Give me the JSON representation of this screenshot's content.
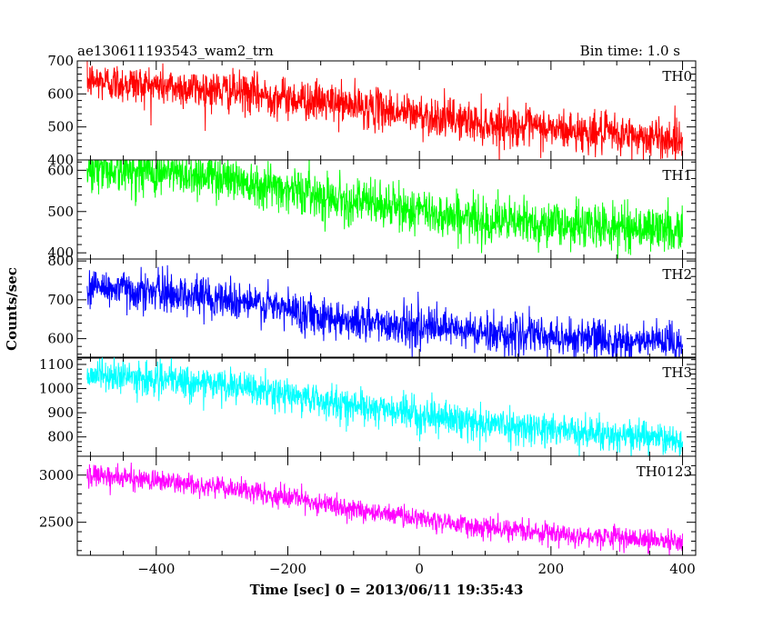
{
  "header": {
    "title": "ae130611193543_wam2_trn",
    "bin_time": "Bin time: 1.0 s"
  },
  "chart_data": {
    "type": "line",
    "xlabel": "Time [sec] 0 = 2013/06/11 19:35:43",
    "ylabel": "Counts/sec",
    "xlim": [
      -520,
      420
    ],
    "x_ticks": [
      -400,
      -200,
      0,
      200,
      400
    ],
    "x_tick_labels": [
      "−400",
      "−200",
      "0",
      "200",
      "400"
    ],
    "data_x_range": [
      -505,
      400
    ],
    "bin_time_s": 1.0,
    "panels": [
      {
        "name": "TH0",
        "color": "#ff0000",
        "ylim": [
          400,
          700
        ],
        "y_ticks": [
          400,
          500,
          600,
          700
        ],
        "y_tick_labels": [
          "400",
          "500",
          "600",
          "700"
        ],
        "trend": [
          [
            -505,
            640
          ],
          [
            -300,
            610
          ],
          [
            -100,
            565
          ],
          [
            100,
            510
          ],
          [
            400,
            460
          ]
        ],
        "noise_sd": 30
      },
      {
        "name": "TH1",
        "color": "#00ff00",
        "ylim": [
          385,
          625
        ],
        "y_ticks": [
          400,
          500,
          600
        ],
        "y_tick_labels": [
          "400",
          "500",
          "600"
        ],
        "trend": [
          [
            -505,
            605
          ],
          [
            -300,
            585
          ],
          [
            -100,
            525
          ],
          [
            100,
            478
          ],
          [
            400,
            455
          ]
        ],
        "noise_sd": 27
      },
      {
        "name": "TH2",
        "color": "#0000ff",
        "ylim": [
          550,
          805
        ],
        "y_ticks": [
          600,
          700,
          800
        ],
        "y_tick_labels": [
          "600",
          "700",
          "800"
        ],
        "trend": [
          [
            -505,
            735
          ],
          [
            -300,
            705
          ],
          [
            -100,
            645
          ],
          [
            100,
            615
          ],
          [
            400,
            585
          ]
        ],
        "noise_sd": 25
      },
      {
        "name": "TH3",
        "color": "#00ffff",
        "ylim": [
          720,
          1130
        ],
        "y_ticks": [
          800,
          900,
          1000,
          1100
        ],
        "y_tick_labels": [
          "800",
          "900",
          "1000",
          "1100"
        ],
        "trend": [
          [
            -505,
            1060
          ],
          [
            -300,
            1015
          ],
          [
            -100,
            930
          ],
          [
            100,
            855
          ],
          [
            400,
            785
          ]
        ],
        "noise_sd": 33
      },
      {
        "name": "TH0123",
        "color": "#ff00ff",
        "ylim": [
          2150,
          3200
        ],
        "y_ticks": [
          2500,
          3000
        ],
        "y_tick_labels": [
          "2500",
          "3000"
        ],
        "trend": [
          [
            -505,
            3010
          ],
          [
            -300,
            2870
          ],
          [
            -100,
            2640
          ],
          [
            100,
            2440
          ],
          [
            400,
            2290
          ]
        ],
        "noise_sd": 55
      }
    ]
  }
}
